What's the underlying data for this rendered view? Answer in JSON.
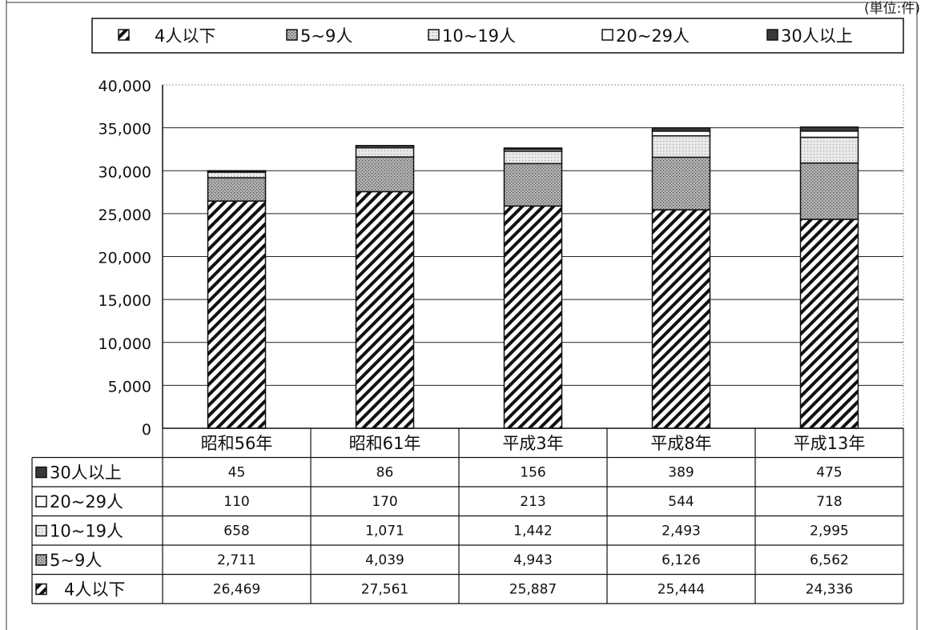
{
  "unit_label": "(単位:件)",
  "chart_data": {
    "type": "bar",
    "stacked": true,
    "categories": [
      "昭和56年",
      "昭和61年",
      "平成3年",
      "平成8年",
      "平成13年"
    ],
    "ylim": [
      0,
      40000
    ],
    "yticks": [
      "0",
      "5,000",
      "10,000",
      "15,000",
      "20,000",
      "25,000",
      "30,000",
      "35,000",
      "40,000"
    ],
    "ytick_values": [
      0,
      5000,
      10000,
      15000,
      20000,
      25000,
      30000,
      35000,
      40000
    ],
    "grid": true,
    "legend_position": "top",
    "series": [
      {
        "name": "4人以下",
        "table_label": "4人以下",
        "pattern": "diagonal-hatch",
        "values": [
          26469,
          27561,
          25887,
          25444,
          24336
        ],
        "display": [
          "26,469",
          "27,561",
          "25,887",
          "25,444",
          "24,336"
        ]
      },
      {
        "name": "5~9人",
        "table_label": "5~9人",
        "pattern": "dense-dots",
        "values": [
          2711,
          4039,
          4943,
          6126,
          6562
        ],
        "display": [
          "2,711",
          "4,039",
          "4,943",
          "6,126",
          "6,562"
        ]
      },
      {
        "name": "10~19人",
        "table_label": "10~19人",
        "pattern": "light-dots",
        "values": [
          658,
          1071,
          1442,
          2493,
          2995
        ],
        "display": [
          "658",
          "1,071",
          "1,442",
          "2,493",
          "2,995"
        ]
      },
      {
        "name": "20~29人",
        "table_label": "20~29人",
        "pattern": "white",
        "values": [
          110,
          170,
          213,
          544,
          718
        ],
        "display": [
          "110",
          "170",
          "213",
          "544",
          "718"
        ]
      },
      {
        "name": "30人以上",
        "table_label": "30人以上",
        "pattern": "dark",
        "values": [
          45,
          86,
          156,
          389,
          475
        ],
        "display": [
          "45",
          "86",
          "156",
          "389",
          "475"
        ]
      }
    ],
    "table_row_order": [
      "30人以上",
      "20~29人",
      "10~19人",
      "5~9人",
      "4人以下"
    ]
  }
}
